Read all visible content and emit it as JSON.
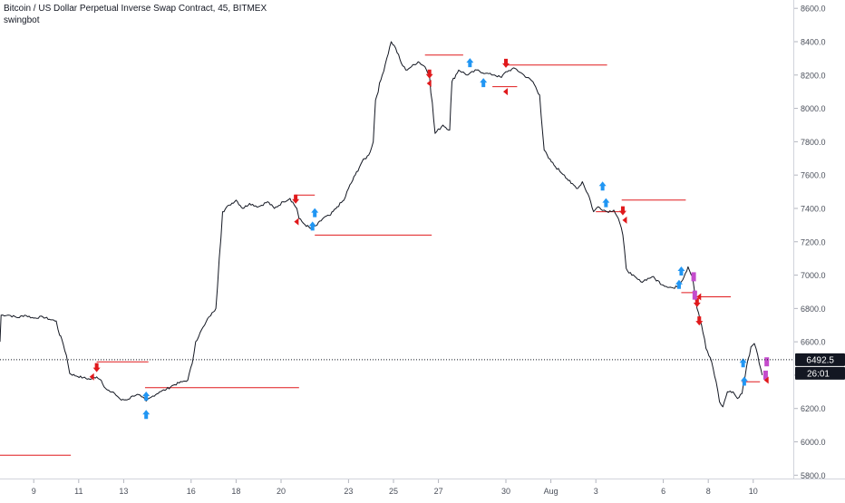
{
  "header": {
    "title": "Bitcoin / US Dollar Perpetual Inverse Swap Contract, 45, BITMEX",
    "indicator": "swingbot"
  },
  "colors": {
    "price_line": "#131722",
    "signal_line": "#e0191c",
    "sell_arrow": "#e0191c",
    "buy_arrow": "#2196f3",
    "exit_marker": "#c44ccc",
    "axis_text": "#4a4f5a",
    "label_bg": "#131722",
    "label_text": "#ffffff"
  },
  "chart_data": {
    "type": "line",
    "title": "Bitcoin / US Dollar Perpetual Inverse Swap Contract, 45, BITMEX",
    "xlabel": "",
    "ylabel": "",
    "grid": false,
    "x_ticks": [
      {
        "label": "9",
        "day": 9
      },
      {
        "label": "11",
        "day": 11
      },
      {
        "label": "13",
        "day": 13
      },
      {
        "label": "16",
        "day": 16
      },
      {
        "label": "18",
        "day": 18
      },
      {
        "label": "20",
        "day": 20
      },
      {
        "label": "23",
        "day": 23
      },
      {
        "label": "25",
        "day": 25
      },
      {
        "label": "27",
        "day": 27
      },
      {
        "label": "30",
        "day": 30
      },
      {
        "label": "Aug",
        "day": 32
      },
      {
        "label": "3",
        "day": 34
      },
      {
        "label": "6",
        "day": 37
      },
      {
        "label": "8",
        "day": 39
      },
      {
        "label": "10",
        "day": 41
      }
    ],
    "y_ticks": [
      5800,
      6000,
      6200,
      6400,
      6600,
      6800,
      7000,
      7200,
      7400,
      7600,
      7800,
      8000,
      8200,
      8400,
      8600
    ],
    "ylim": [
      5780,
      8650
    ],
    "xlim": [
      7.5,
      42.5
    ],
    "current_price": "6492.5",
    "countdown": "26:01",
    "series": [
      {
        "points": [
          [
            7.5,
            6600
          ],
          [
            7.55,
            6760
          ],
          [
            7.9,
            6760
          ],
          [
            8.3,
            6745
          ],
          [
            8.6,
            6760
          ],
          [
            9.0,
            6742
          ],
          [
            9.4,
            6750
          ],
          [
            9.7,
            6735
          ],
          [
            10.0,
            6725
          ],
          [
            10.15,
            6640
          ],
          [
            10.25,
            6615
          ],
          [
            10.45,
            6520
          ],
          [
            10.6,
            6410
          ],
          [
            10.9,
            6395
          ],
          [
            11.2,
            6385
          ],
          [
            11.5,
            6375
          ],
          [
            11.8,
            6390
          ],
          [
            12.0,
            6370
          ],
          [
            12.2,
            6320
          ],
          [
            12.4,
            6300
          ],
          [
            12.6,
            6290
          ],
          [
            12.9,
            6250
          ],
          [
            13.2,
            6255
          ],
          [
            13.4,
            6275
          ],
          [
            13.6,
            6285
          ],
          [
            13.8,
            6270
          ],
          [
            14.0,
            6245
          ],
          [
            14.3,
            6275
          ],
          [
            14.6,
            6300
          ],
          [
            14.9,
            6315
          ],
          [
            15.2,
            6340
          ],
          [
            15.6,
            6360
          ],
          [
            15.85,
            6370
          ],
          [
            16.05,
            6470
          ],
          [
            16.2,
            6600
          ],
          [
            16.4,
            6655
          ],
          [
            16.6,
            6700
          ],
          [
            16.8,
            6750
          ],
          [
            17.0,
            6780
          ],
          [
            17.1,
            6800
          ],
          [
            17.25,
            7100
          ],
          [
            17.4,
            7380
          ],
          [
            17.7,
            7420
          ],
          [
            18.0,
            7450
          ],
          [
            18.3,
            7400
          ],
          [
            18.6,
            7430
          ],
          [
            19.0,
            7410
          ],
          [
            19.4,
            7440
          ],
          [
            19.7,
            7400
          ],
          [
            20.1,
            7440
          ],
          [
            20.4,
            7460
          ],
          [
            20.7,
            7400
          ],
          [
            20.8,
            7340
          ],
          [
            21.0,
            7310
          ],
          [
            21.3,
            7280
          ],
          [
            21.6,
            7300
          ],
          [
            21.9,
            7345
          ],
          [
            22.2,
            7360
          ],
          [
            22.5,
            7410
          ],
          [
            22.8,
            7450
          ],
          [
            23.0,
            7520
          ],
          [
            23.3,
            7600
          ],
          [
            23.6,
            7680
          ],
          [
            23.9,
            7720
          ],
          [
            24.1,
            7800
          ],
          [
            24.2,
            8050
          ],
          [
            24.5,
            8200
          ],
          [
            24.7,
            8300
          ],
          [
            24.9,
            8400
          ],
          [
            25.1,
            8360
          ],
          [
            25.35,
            8270
          ],
          [
            25.55,
            8230
          ],
          [
            25.8,
            8250
          ],
          [
            26.1,
            8280
          ],
          [
            26.4,
            8250
          ],
          [
            26.6,
            8200
          ],
          [
            26.85,
            7850
          ],
          [
            27.2,
            7900
          ],
          [
            27.5,
            7870
          ],
          [
            27.6,
            8160
          ],
          [
            27.9,
            8230
          ],
          [
            28.3,
            8200
          ],
          [
            28.7,
            8230
          ],
          [
            29.1,
            8210
          ],
          [
            29.5,
            8200
          ],
          [
            29.8,
            8185
          ],
          [
            30.0,
            8220
          ],
          [
            30.4,
            8240
          ],
          [
            30.8,
            8200
          ],
          [
            31.2,
            8160
          ],
          [
            31.5,
            8080
          ],
          [
            31.7,
            7750
          ],
          [
            31.9,
            7700
          ],
          [
            32.2,
            7650
          ],
          [
            32.6,
            7600
          ],
          [
            32.9,
            7550
          ],
          [
            33.2,
            7520
          ],
          [
            33.4,
            7560
          ],
          [
            33.7,
            7470
          ],
          [
            33.9,
            7380
          ],
          [
            34.1,
            7410
          ],
          [
            34.5,
            7380
          ],
          [
            34.8,
            7390
          ],
          [
            35.0,
            7340
          ],
          [
            35.2,
            7240
          ],
          [
            35.35,
            7040
          ],
          [
            35.6,
            7000
          ],
          [
            36.0,
            6960
          ],
          [
            36.5,
            6990
          ],
          [
            37.0,
            6940
          ],
          [
            37.5,
            6920
          ],
          [
            37.8,
            6960
          ],
          [
            38.1,
            7050
          ],
          [
            38.3,
            6990
          ],
          [
            38.5,
            6800
          ],
          [
            38.7,
            6700
          ],
          [
            38.9,
            6560
          ],
          [
            39.15,
            6480
          ],
          [
            39.35,
            6360
          ],
          [
            39.5,
            6240
          ],
          [
            39.65,
            6210
          ],
          [
            39.85,
            6300
          ],
          [
            40.1,
            6300
          ],
          [
            40.3,
            6260
          ],
          [
            40.5,
            6290
          ],
          [
            40.7,
            6450
          ],
          [
            40.9,
            6570
          ],
          [
            41.05,
            6590
          ],
          [
            41.2,
            6520
          ],
          [
            41.4,
            6400
          ]
        ]
      }
    ],
    "signal_levels": [
      {
        "x0": 7.5,
        "x1": 10.65,
        "y": 5920
      },
      {
        "x0": 11.8,
        "x1": 14.1,
        "y": 6480
      },
      {
        "x0": 13.95,
        "x1": 20.8,
        "y": 6325
      },
      {
        "x0": 20.6,
        "x1": 21.5,
        "y": 7480
      },
      {
        "x0": 21.5,
        "x1": 26.7,
        "y": 7240
      },
      {
        "x0": 26.4,
        "x1": 28.1,
        "y": 8320
      },
      {
        "x0": 29.4,
        "x1": 30.5,
        "y": 8130
      },
      {
        "x0": 30.0,
        "x1": 34.5,
        "y": 8260
      },
      {
        "x0": 34.0,
        "x1": 35.3,
        "y": 7380
      },
      {
        "x0": 35.15,
        "x1": 38.0,
        "y": 7450
      },
      {
        "x0": 37.8,
        "x1": 38.5,
        "y": 6895
      },
      {
        "x0": 38.5,
        "x1": 40.0,
        "y": 6870
      },
      {
        "x0": 40.5,
        "x1": 41.3,
        "y": 6360
      }
    ],
    "markers": [
      {
        "kind": "sell",
        "x": 11.8,
        "y": 6440
      },
      {
        "kind": "sell",
        "x": 20.65,
        "y": 7450
      },
      {
        "kind": "sell",
        "x": 26.6,
        "y": 8200
      },
      {
        "kind": "sell",
        "x": 30.0,
        "y": 8265
      },
      {
        "kind": "sell",
        "x": 35.2,
        "y": 7380
      },
      {
        "kind": "sell",
        "x": 38.5,
        "y": 6830
      },
      {
        "kind": "sell",
        "x": 38.6,
        "y": 6720
      },
      {
        "kind": "buy",
        "x": 14.0,
        "y": 6280
      },
      {
        "kind": "buy",
        "x": 14.0,
        "y": 6170
      },
      {
        "kind": "buy",
        "x": 21.5,
        "y": 7380
      },
      {
        "kind": "buy",
        "x": 21.4,
        "y": 7300
      },
      {
        "kind": "buy",
        "x": 28.4,
        "y": 8280
      },
      {
        "kind": "buy",
        "x": 29.0,
        "y": 8160
      },
      {
        "kind": "buy",
        "x": 34.3,
        "y": 7540
      },
      {
        "kind": "buy",
        "x": 34.45,
        "y": 7440
      },
      {
        "kind": "buy",
        "x": 37.8,
        "y": 7030
      },
      {
        "kind": "buy",
        "x": 37.7,
        "y": 6950
      },
      {
        "kind": "buy",
        "x": 40.55,
        "y": 6480
      },
      {
        "kind": "buy",
        "x": 40.6,
        "y": 6370
      },
      {
        "kind": "exit",
        "x": 38.35,
        "y": 6990
      },
      {
        "kind": "exit",
        "x": 38.4,
        "y": 6880
      },
      {
        "kind": "exit",
        "x": 41.6,
        "y": 6480
      },
      {
        "kind": "exit",
        "x": 41.55,
        "y": 6400
      },
      {
        "kind": "tick",
        "x": 11.6,
        "y": 6390
      },
      {
        "kind": "tick",
        "x": 20.7,
        "y": 7320
      },
      {
        "kind": "tick",
        "x": 26.6,
        "y": 8150
      },
      {
        "kind": "tick",
        "x": 30.0,
        "y": 8100
      },
      {
        "kind": "tick",
        "x": 35.3,
        "y": 7330
      },
      {
        "kind": "tick",
        "x": 38.6,
        "y": 6870
      },
      {
        "kind": "tick",
        "x": 41.6,
        "y": 6370
      }
    ]
  }
}
